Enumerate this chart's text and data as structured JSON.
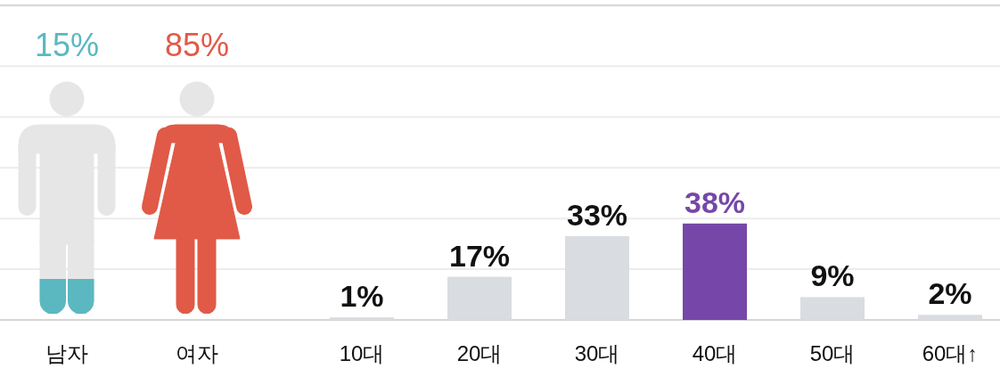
{
  "chart_data": [
    {
      "type": "other",
      "categories": [
        "남자",
        "여자"
      ],
      "values": [
        15,
        85
      ],
      "colors": [
        "#5bb8c1",
        "#e05a47"
      ],
      "value_labels": [
        "15%",
        "85%"
      ]
    },
    {
      "type": "bar",
      "categories": [
        "10대",
        "20대",
        "30대",
        "40대",
        "50대",
        "60대↑"
      ],
      "values": [
        1,
        17,
        33,
        38,
        9,
        2
      ],
      "colors": [
        "#d9dce0",
        "#d9dce0",
        "#d9dce0",
        "#7647a8",
        "#d9dce0",
        "#d9dce0"
      ],
      "value_labels": [
        "1%",
        "17%",
        "33%",
        "38%",
        "9%",
        "2%"
      ],
      "ylim": [
        0,
        124
      ],
      "yticks": [
        {
          "value": 0,
          "label": null
        },
        {
          "value": 20,
          "label": null
        },
        {
          "value": 40,
          "label": null
        },
        {
          "value": 60,
          "label": null
        },
        {
          "value": 80,
          "label": null
        },
        {
          "value": 100,
          "label": null
        }
      ],
      "grid": "y"
    }
  ]
}
